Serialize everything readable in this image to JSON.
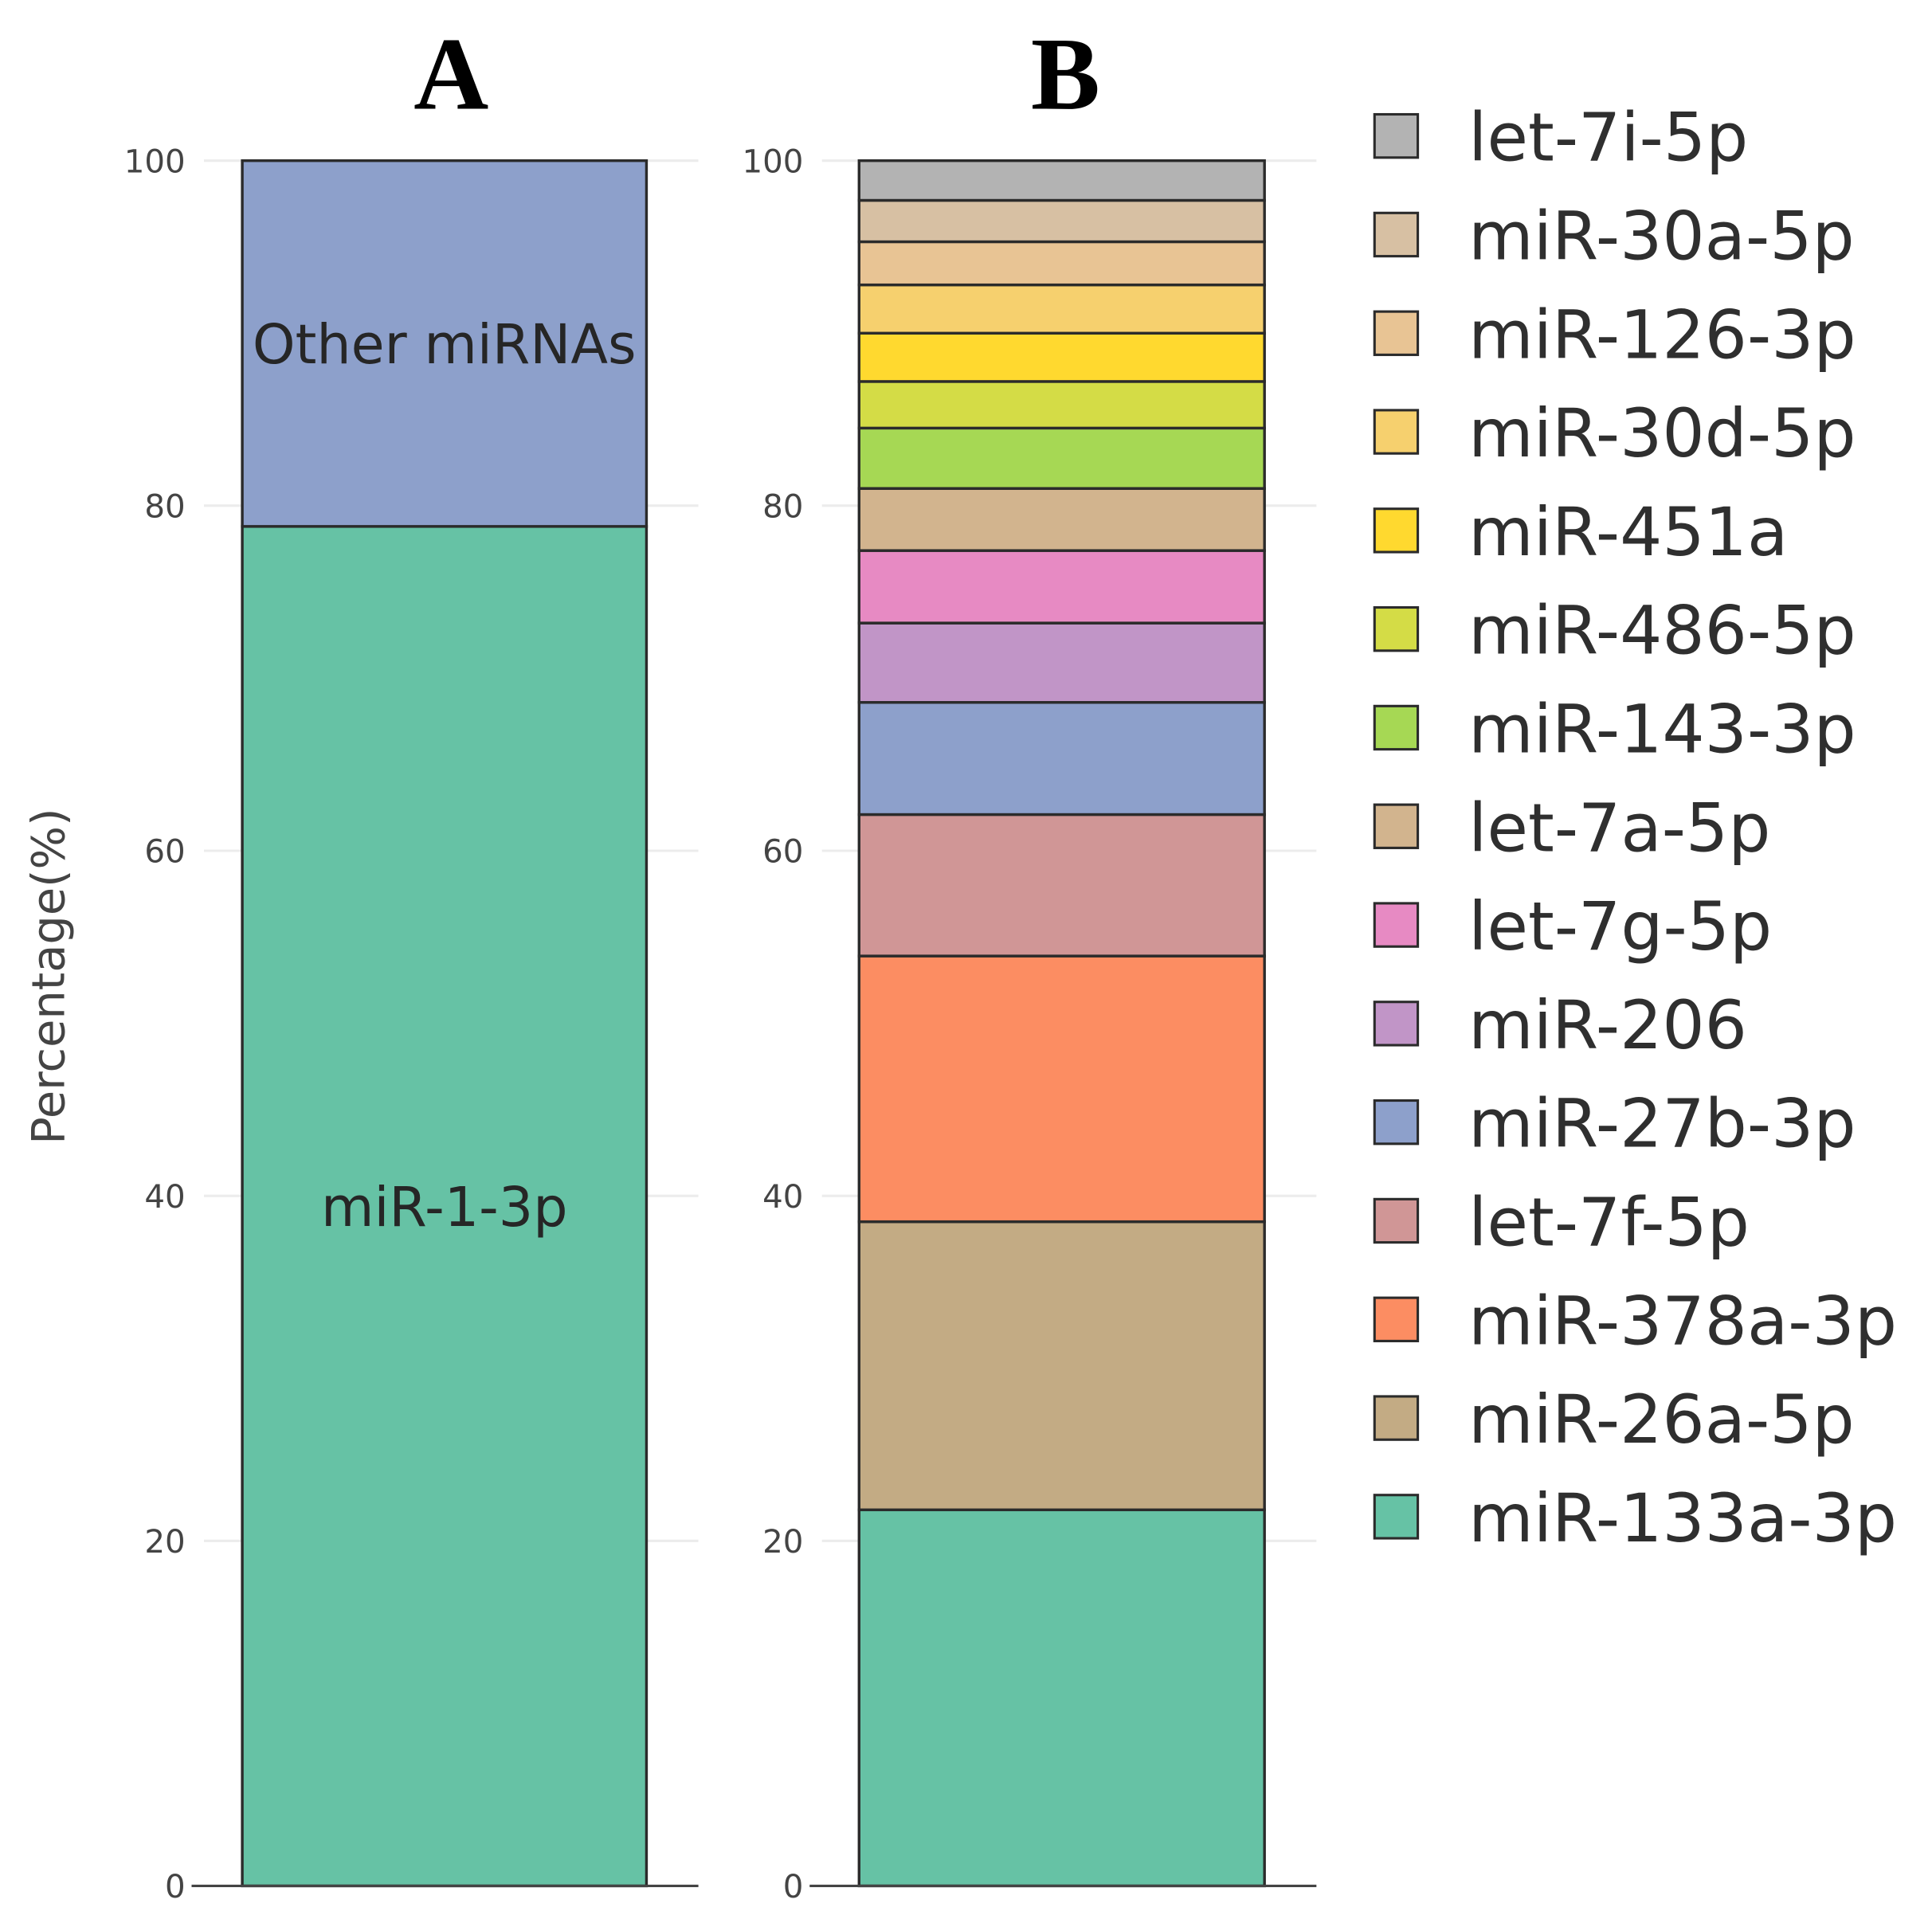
{
  "chart_data": [
    {
      "type": "bar",
      "stacked": true,
      "title": "A",
      "ylabel": "Percentage(%)",
      "ylim": [
        0,
        100
      ],
      "yticks": [
        0,
        20,
        40,
        60,
        80,
        100
      ],
      "grid": true,
      "show_segment_labels": true,
      "series": [
        {
          "name": "miR-1-3p",
          "values": [
            78.8
          ],
          "color": "#66c2a5"
        },
        {
          "name": "Other miRNAs",
          "values": [
            21.2
          ],
          "color": "#8da0cb"
        }
      ]
    },
    {
      "type": "bar",
      "stacked": true,
      "title": "B",
      "ylim": [
        0,
        100
      ],
      "yticks": [
        0,
        20,
        40,
        60,
        80,
        100
      ],
      "grid": true,
      "show_segment_labels": false,
      "legend": "right",
      "series": [
        {
          "name": "miR-133a-3p",
          "values": [
            21.8
          ],
          "color": "#66c2a5"
        },
        {
          "name": "miR-26a-5p",
          "values": [
            16.7
          ],
          "color": "#c3ab84"
        },
        {
          "name": "miR-378a-3p",
          "values": [
            15.4
          ],
          "color": "#fc8d62"
        },
        {
          "name": "let-7f-5p",
          "values": [
            8.2
          ],
          "color": "#d09696"
        },
        {
          "name": "miR-27b-3p",
          "values": [
            6.5
          ],
          "color": "#8da0cb"
        },
        {
          "name": "miR-206",
          "values": [
            4.6
          ],
          "color": "#c195c7"
        },
        {
          "name": "let-7g-5p",
          "values": [
            4.2
          ],
          "color": "#e78ac3"
        },
        {
          "name": "let-7a-5p",
          "values": [
            3.6
          ],
          "color": "#d2b48e"
        },
        {
          "name": "miR-143-3p",
          "values": [
            3.5
          ],
          "color": "#a6d854"
        },
        {
          "name": "miR-486-5p",
          "values": [
            2.7
          ],
          "color": "#d4dc46"
        },
        {
          "name": "miR-451a",
          "values": [
            2.8
          ],
          "color": "#ffd92f"
        },
        {
          "name": "miR-30d-5p",
          "values": [
            2.8
          ],
          "color": "#f6d06e"
        },
        {
          "name": "miR-126-3p",
          "values": [
            2.5
          ],
          "color": "#e8c494"
        },
        {
          "name": "miR-30a-5p",
          "values": [
            2.4
          ],
          "color": "#d7c0a3"
        },
        {
          "name": "let-7i-5p",
          "values": [
            2.3
          ],
          "color": "#b3b3b3"
        }
      ]
    }
  ]
}
